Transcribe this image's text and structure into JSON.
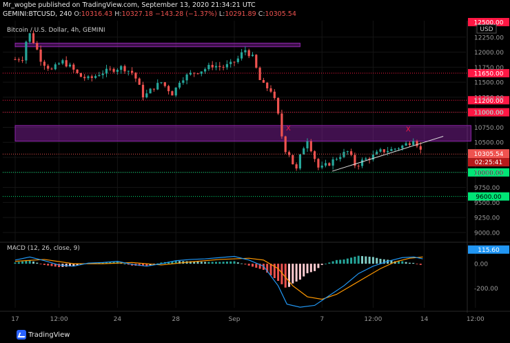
{
  "header": {
    "publish_line": "Mr_wogbe published on TradingView.com, September 13, 2020 21:34:21 UTC",
    "symbol": "GEMINI:BTCUSD, 240",
    "ohlc": {
      "o_label": "O:",
      "o": "10316.43",
      "h_label": "H:",
      "h": "10327.18",
      "l_label": "L:",
      "l": "10291.89",
      "c_label": "C:",
      "c": "10305.54"
    },
    "change": "−143.28 (−1.37%)"
  },
  "watermark": "TradingView",
  "colors": {
    "up": "#26a69a",
    "down": "#ef5350",
    "zone": "#8e24aa",
    "resistance": "#ff1744",
    "support": "#00e676",
    "macd": "#2196f3",
    "signal": "#ff9800"
  },
  "chart_data": [
    {
      "type": "candlestick",
      "title": "Bitcoin / U.S. Dollar, 4h, GEMINI",
      "currency": "USD",
      "ylim": [
        8850,
        12500
      ],
      "y_ticks": [
        9000,
        9250,
        9500,
        9750,
        10000,
        10250,
        10500,
        10750,
        11000,
        11250,
        11500,
        11750,
        12000,
        12250
      ],
      "x_tick_labels": [
        {
          "label": "17",
          "t": 0
        },
        {
          "label": "12:00",
          "t": 3
        },
        {
          "label": "24",
          "t": 7
        },
        {
          "label": "28",
          "t": 11
        },
        {
          "label": "Sep",
          "t": 15
        },
        {
          "label": "7",
          "t": 21
        },
        {
          "label": "12:00",
          "t": 24.5
        },
        {
          "label": "14",
          "t": 28
        },
        {
          "label": "12:00",
          "t": 31.5
        }
      ],
      "price_path": [
        [
          0,
          11880
        ],
        [
          0.5,
          11900
        ],
        [
          0.9,
          12350
        ],
        [
          1.4,
          12100
        ],
        [
          1.8,
          11850
        ],
        [
          2.5,
          11700
        ],
        [
          3.2,
          11850
        ],
        [
          3.8,
          11750
        ],
        [
          4.4,
          11600
        ],
        [
          5.1,
          11550
        ],
        [
          5.8,
          11650
        ],
        [
          6.5,
          11700
        ],
        [
          7.3,
          11750
        ],
        [
          8.1,
          11650
        ],
        [
          8.8,
          11250
        ],
        [
          9.4,
          11400
        ],
        [
          10.0,
          11500
        ],
        [
          10.8,
          11300
        ],
        [
          11.3,
          11550
        ],
        [
          12.1,
          11650
        ],
        [
          12.8,
          11700
        ],
        [
          13.5,
          11780
        ],
        [
          14.2,
          11750
        ],
        [
          14.8,
          11800
        ],
        [
          15.3,
          11900
        ],
        [
          15.7,
          12050
        ],
        [
          16.3,
          11900
        ],
        [
          16.7,
          11550
        ],
        [
          17.0,
          11450
        ],
        [
          17.6,
          11350
        ],
        [
          18.0,
          10950
        ],
        [
          18.4,
          10400
        ],
        [
          18.8,
          10300
        ],
        [
          19.2,
          10000
        ],
        [
          19.6,
          10350
        ],
        [
          20.0,
          10550
        ],
        [
          20.4,
          10300
        ],
        [
          20.8,
          10050
        ],
        [
          21.5,
          10150
        ],
        [
          22.2,
          10280
        ],
        [
          22.8,
          10350
        ],
        [
          23.3,
          10100
        ],
        [
          23.8,
          10200
        ],
        [
          24.4,
          10260
        ],
        [
          25.0,
          10350
        ],
        [
          25.8,
          10380
        ],
        [
          26.5,
          10440
        ],
        [
          27.0,
          10500
        ],
        [
          27.3,
          10580
        ],
        [
          27.6,
          10420
        ],
        [
          27.9,
          10306
        ]
      ],
      "supply_zones": [
        {
          "from": 12150,
          "to": 12090,
          "t_start": 0,
          "t_end": 19.5
        },
        {
          "from": 10780,
          "to": 10520,
          "t_start": 0,
          "t_end": 31.2
        }
      ],
      "levels": [
        {
          "label": "11650.00",
          "value": 11650,
          "color": "#ff1744"
        },
        {
          "label": "11200.00",
          "value": 11200,
          "color": "#ff1744"
        },
        {
          "label": "11000.00",
          "value": 11000,
          "color": "#ff1744"
        },
        {
          "label": "10000.00",
          "value": 10000,
          "color": "#00e676"
        },
        {
          "label": "9600.00",
          "value": 9600,
          "color": "#00e676"
        }
      ],
      "top_axis_tag": "12500.00",
      "last_price_tag": "10305.54",
      "countdown_tag": "02:25:41",
      "trendline": {
        "t_start": 21.7,
        "v_start": 10020,
        "t_end": 29.3,
        "v_end": 10600
      },
      "annotations": [
        {
          "text": "X",
          "t": 18.7,
          "value": 10700
        },
        {
          "text": "X",
          "t": 26.9,
          "value": 10680
        }
      ]
    },
    {
      "type": "histogram+line",
      "title": "MACD (12, 26, close, 9)",
      "ylim": [
        -360,
        170
      ],
      "y_ticks": [
        0,
        -200
      ],
      "last_value_tag": "115.60",
      "macd_path": [
        [
          0,
          30
        ],
        [
          1,
          55
        ],
        [
          2,
          25
        ],
        [
          3,
          -10
        ],
        [
          4,
          -20
        ],
        [
          5,
          5
        ],
        [
          6,
          10
        ],
        [
          7,
          20
        ],
        [
          8,
          -5
        ],
        [
          9,
          -20
        ],
        [
          10,
          0
        ],
        [
          11,
          25
        ],
        [
          12,
          35
        ],
        [
          13,
          40
        ],
        [
          14,
          50
        ],
        [
          15,
          60
        ],
        [
          16,
          30
        ],
        [
          17,
          -20
        ],
        [
          18,
          -180
        ],
        [
          18.6,
          -330
        ],
        [
          19.5,
          -355
        ],
        [
          20.5,
          -340
        ],
        [
          21.5,
          -260
        ],
        [
          22.5,
          -180
        ],
        [
          23.5,
          -80
        ],
        [
          24.5,
          -20
        ],
        [
          25.5,
          20
        ],
        [
          26.5,
          50
        ],
        [
          27.3,
          55
        ],
        [
          27.9,
          40
        ]
      ],
      "signal_path": [
        [
          0,
          20
        ],
        [
          2,
          35
        ],
        [
          4,
          0
        ],
        [
          6,
          0
        ],
        [
          8,
          10
        ],
        [
          10,
          -10
        ],
        [
          12,
          15
        ],
        [
          14,
          35
        ],
        [
          16,
          45
        ],
        [
          17,
          30
        ],
        [
          18,
          -40
        ],
        [
          19,
          -180
        ],
        [
          20,
          -270
        ],
        [
          21,
          -290
        ],
        [
          22,
          -250
        ],
        [
          23,
          -180
        ],
        [
          24,
          -110
        ],
        [
          25,
          -40
        ],
        [
          26,
          15
        ],
        [
          27,
          45
        ],
        [
          27.9,
          55
        ]
      ]
    }
  ]
}
